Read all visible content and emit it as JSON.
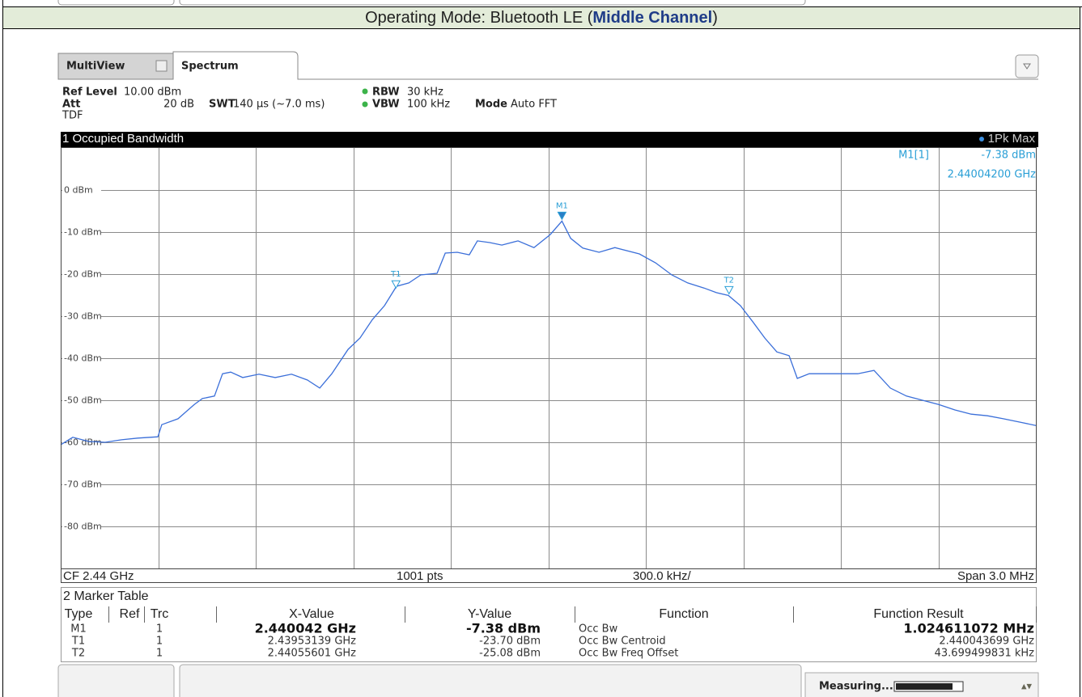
{
  "header": {
    "prefix": "Operating Mode: Bluetooth LE (",
    "emphasis": "Middle Channel",
    "suffix": ")"
  },
  "tabs": [
    "MultiView",
    "Spectrum"
  ],
  "settings": {
    "ref_level_label": "Ref Level",
    "ref_level": "10.00 dBm",
    "att_label": "Att",
    "att": "20 dB",
    "swt_label": "SWT",
    "swt": "140 µs (~7.0 ms)",
    "rbw_label": "RBW",
    "rbw": "30 kHz",
    "vbw_label": "VBW",
    "vbw": "100 kHz",
    "mode_label": "Mode",
    "mode": "Auto FFT",
    "tdf": "TDF"
  },
  "chart_data": {
    "type": "line",
    "title": "1 Occupied Bandwidth",
    "xlim": [
      2.4385,
      2.4415
    ],
    "ylim": [
      -90,
      10
    ],
    "yticks": [
      {
        "value": 0,
        "label": "0 dBm"
      },
      {
        "value": -10,
        "label": "-10 dBm"
      },
      {
        "value": -20,
        "label": "-20 dBm"
      },
      {
        "value": -30,
        "label": "-30 dBm"
      },
      {
        "value": -40,
        "label": "-40 dBm"
      },
      {
        "value": -50,
        "label": "-50 dBm"
      },
      {
        "value": -60,
        "label": "-60 dBm"
      },
      {
        "value": -70,
        "label": "-70 dBm"
      },
      {
        "value": -80,
        "label": "-80 dBm"
      }
    ],
    "grid": true,
    "series": [
      {
        "name": "1Pk Max",
        "color": "#3b6fd9",
        "x": [
          2.4385,
          2.438537,
          2.438587,
          2.438637,
          2.438687,
          2.438737,
          2.438799,
          2.438811,
          2.438861,
          2.438911,
          2.438936,
          2.438973,
          2.438998,
          2.439023,
          2.43906,
          2.43911,
          2.43916,
          2.43921,
          2.439259,
          2.439297,
          2.439334,
          2.439384,
          2.439421,
          2.439459,
          2.439496,
          2.439533,
          2.439571,
          2.439608,
          2.439658,
          2.439683,
          2.43972,
          2.439757,
          2.439782,
          2.43982,
          2.439857,
          2.439907,
          2.439956,
          2.440006,
          2.440042,
          2.440069,
          2.440106,
          2.440156,
          2.440205,
          2.44028,
          2.44033,
          2.44038,
          2.440429,
          2.440479,
          2.440517,
          2.440554,
          2.440591,
          2.440629,
          2.440666,
          2.440703,
          2.440741,
          2.440766,
          2.440803,
          2.440853,
          2.440902,
          2.440952,
          2.441002,
          2.441052,
          2.441102,
          2.441151,
          2.441201,
          2.441251,
          2.441301,
          2.441351,
          2.4414,
          2.44145,
          2.4415
        ],
        "values": [
          -60.6,
          -58.8,
          -59.8,
          -60,
          -59.4,
          -59,
          -58.7,
          -55.8,
          -54.4,
          -51,
          -49.6,
          -49,
          -43.7,
          -43.3,
          -44.6,
          -43.8,
          -44.6,
          -43.8,
          -45.2,
          -47.1,
          -43.7,
          -37.9,
          -35.2,
          -30.8,
          -27.5,
          -22.9,
          -22.1,
          -20.2,
          -19.8,
          -15,
          -14.8,
          -15.4,
          -12.1,
          -12.5,
          -13.1,
          -12.1,
          -13.7,
          -10.6,
          -7.38,
          -11.5,
          -13.8,
          -14.8,
          -13.7,
          -15.2,
          -17.3,
          -20.2,
          -22.1,
          -23.3,
          -24.4,
          -25.08,
          -27.5,
          -31.3,
          -35.2,
          -38.5,
          -39.4,
          -44.8,
          -43.7,
          -43.7,
          -43.7,
          -43.7,
          -42.9,
          -47.1,
          -49,
          -50,
          -51,
          -52.3,
          -53.3,
          -53.7,
          -54.4,
          -55.2,
          -56
        ]
      }
    ],
    "markers": [
      {
        "name": "M1",
        "x": 2.440042,
        "y": -7.38,
        "style": "filled"
      },
      {
        "name": "T1",
        "x": 2.43953139,
        "y": -23.7,
        "style": "hollow"
      },
      {
        "name": "T2",
        "x": 2.44055601,
        "y": -25.08,
        "style": "hollow"
      }
    ],
    "readout": {
      "name": "M1[1]",
      "level": "-7.38 dBm",
      "freq": "2.44004200 GHz"
    },
    "footer": {
      "center": "CF 2.44 GHz",
      "points": "1001 pts",
      "per_div": "300.0 kHz/",
      "span": "Span 3.0 MHz"
    }
  },
  "marker_table": {
    "title": "2 Marker Table",
    "columns": [
      "Type",
      "Ref",
      "Trc",
      "X-Value",
      "Y-Value",
      "Function",
      "Function Result"
    ],
    "rows": [
      {
        "type": "M1",
        "trc": "1",
        "x": "2.440042 GHz",
        "y": "-7.38 dBm",
        "function": "Occ Bw",
        "result": "1.024611072 MHz"
      },
      {
        "type": "T1",
        "trc": "1",
        "x": "2.43953139 GHz",
        "y": "-23.70 dBm",
        "function": "Occ Bw Centroid",
        "result": "2.440043699 GHz"
      },
      {
        "type": "T2",
        "trc": "1",
        "x": "2.44055601 GHz",
        "y": "-25.08 dBm",
        "function": "Occ Bw Freq Offset",
        "result": "43.699499831 kHz"
      }
    ]
  },
  "status": "Measuring..."
}
